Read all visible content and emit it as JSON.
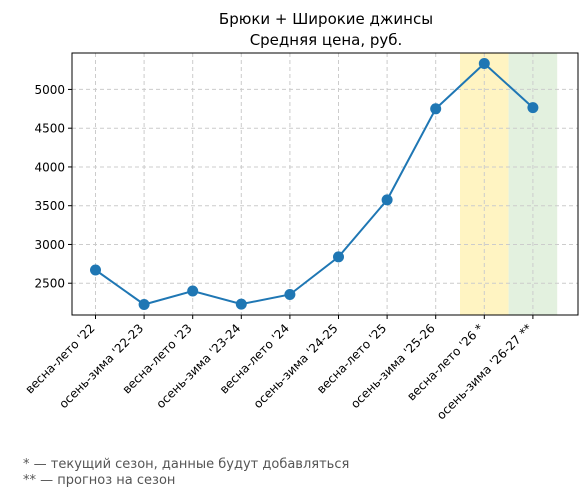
{
  "chart_data": {
    "type": "line",
    "title": "Брюки + Широкие джинсы",
    "subtitle": "Средняя цена, руб.",
    "categories": [
      "весна-лето '22",
      "осень-зима '22-23",
      "весна-лето '23",
      "осень-зима '23-24",
      "весна-лето '24",
      "осень-зима '24-25",
      "весна-лето '25",
      "осень-зима '25-26",
      "весна-лето '26 *",
      "осень-зима '26-27 **"
    ],
    "series": [
      {
        "values": [
          2670,
          2225,
          2400,
          2230,
          2355,
          2840,
          3575,
          4750,
          5335,
          4765
        ],
        "color": "#1f77b4"
      }
    ],
    "ylim": [
      2090,
      5470
    ],
    "yticks": [
      2500,
      3000,
      3500,
      4000,
      4500,
      5000
    ],
    "grid": true,
    "highlights": [
      {
        "category": "весна-лето '26 *",
        "color": "#fff4c2"
      },
      {
        "category": "осень-зима '26-27 **",
        "color": "#e3f1df"
      }
    ]
  },
  "footnotes": [
    "* — текущий сезон, данные будут добавляться",
    "** — прогноз на сезон"
  ]
}
